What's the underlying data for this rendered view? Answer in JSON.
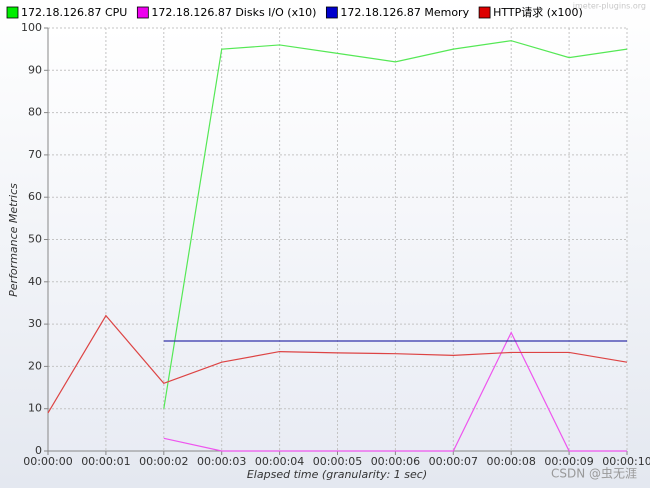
{
  "chart_data": {
    "type": "line",
    "watermark": "jmeter-plugins.org",
    "credit": "CSDN @虫无涯",
    "xlabel": "Elapsed time (granularity: 1 sec)",
    "ylabel": "Performance Metrics",
    "categories": [
      "00:00:00",
      "00:00:01",
      "00:00:02",
      "00:00:03",
      "00:00:04",
      "00:00:05",
      "00:00:06",
      "00:00:07",
      "00:00:08",
      "00:00:09",
      "00:00:10"
    ],
    "series": [
      {
        "name": "172.18.126.87 CPU",
        "color": "#00ee00",
        "line_color": "#55e855",
        "values": [
          null,
          null,
          10,
          95,
          96,
          94,
          92,
          95,
          97,
          93,
          95
        ]
      },
      {
        "name": "172.18.126.87 Disks I/O (x10)",
        "color": "#ee00ee",
        "line_color": "#ee55ee",
        "values": [
          null,
          null,
          3,
          0,
          0,
          0,
          0,
          0,
          28,
          0,
          0
        ]
      },
      {
        "name": "172.18.126.87 Memory",
        "color": "#0000cc",
        "line_color": "#3333aa",
        "values": [
          null,
          null,
          26,
          26,
          26,
          26,
          26,
          26,
          26,
          26,
          26
        ]
      },
      {
        "name": "HTTP请求 (x100)",
        "color": "#dd0000",
        "line_color": "#dd4444",
        "values": [
          9,
          32,
          16,
          21,
          23.5,
          23.2,
          23,
          22.6,
          23.3,
          23.3,
          21
        ]
      }
    ],
    "ylim": [
      0,
      100
    ],
    "yticks": [
      0,
      10,
      20,
      30,
      40,
      50,
      60,
      70,
      80,
      90,
      100
    ],
    "grid": true
  }
}
